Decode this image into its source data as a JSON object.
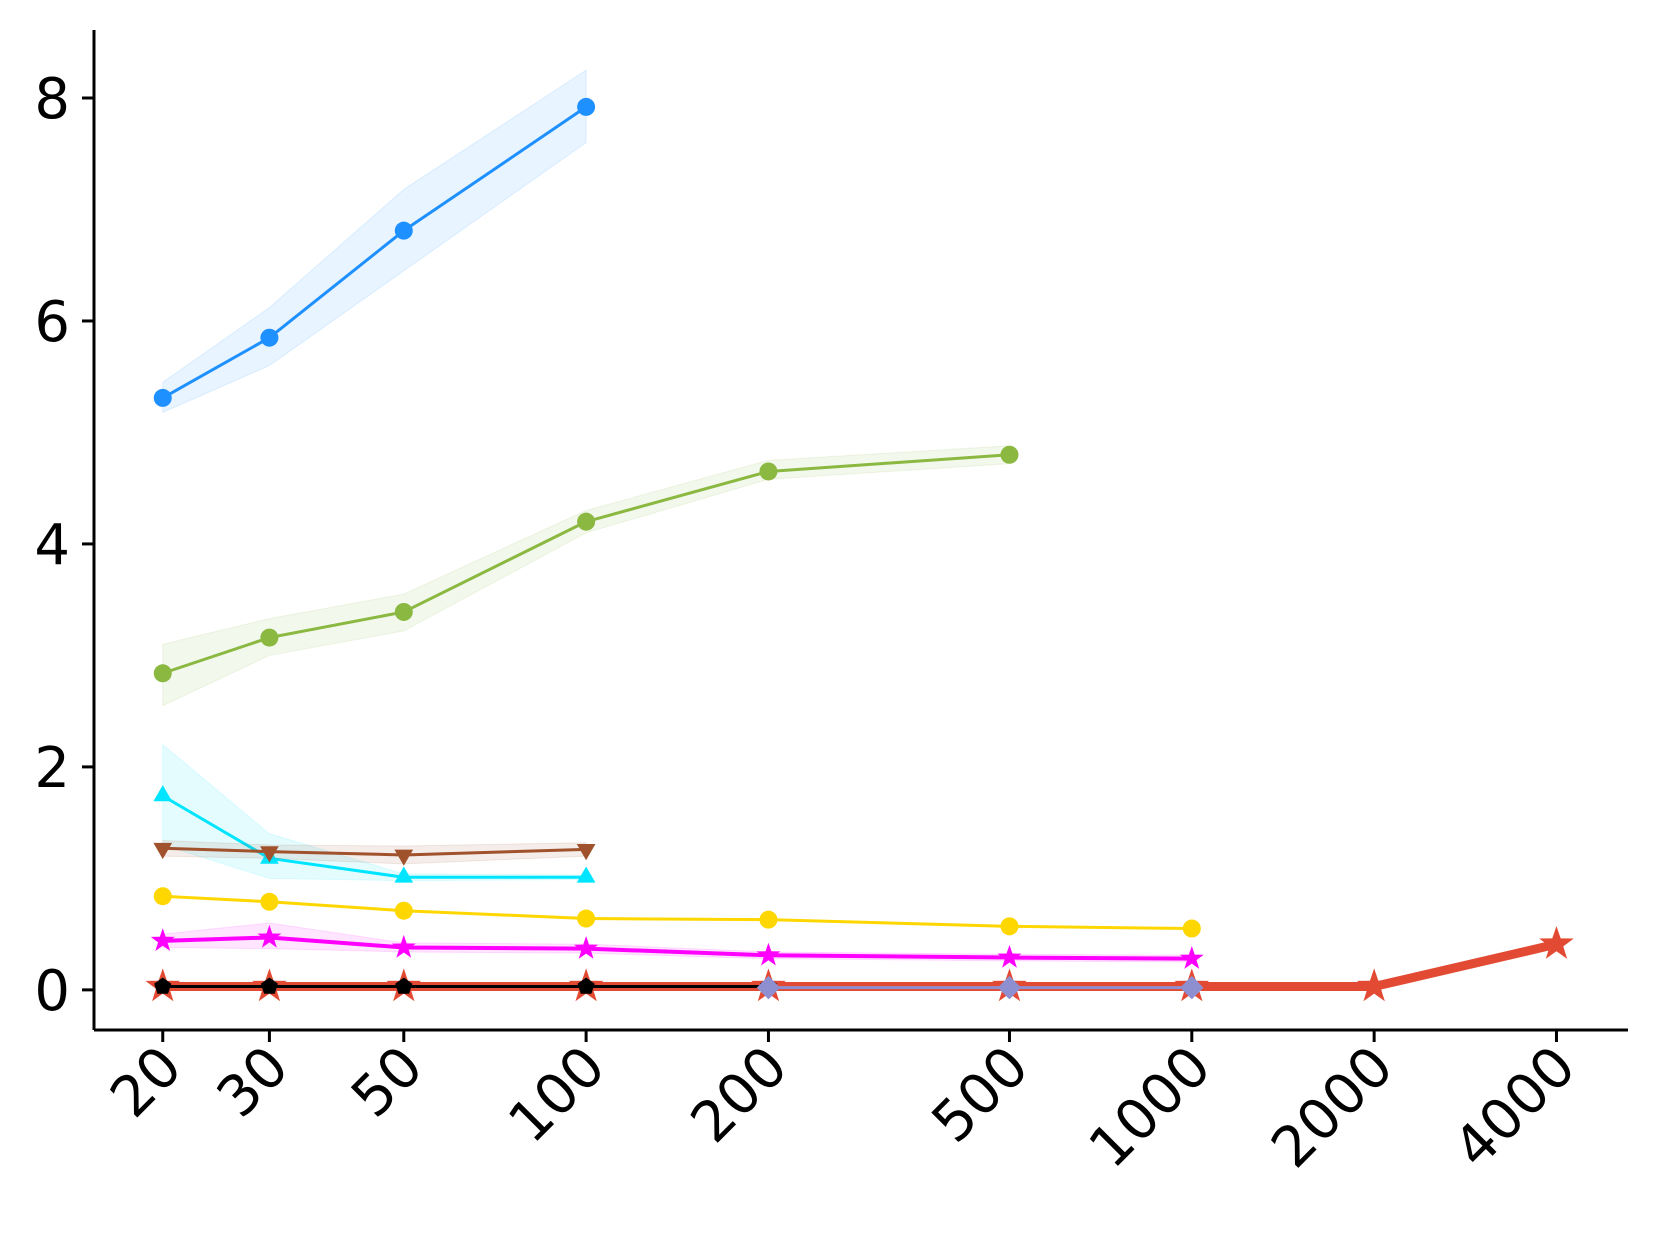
{
  "chart_data": {
    "type": "line",
    "xscale": "log",
    "x": [
      20,
      30,
      50,
      100,
      200,
      500,
      1000,
      2000,
      4000
    ],
    "xlim": [
      15.4,
      5250
    ],
    "xticks": [
      20,
      30,
      50,
      100,
      200,
      500,
      1000,
      2000,
      4000
    ],
    "ylim": [
      -0.36,
      8.61
    ],
    "yticks": [
      0,
      2,
      4,
      6,
      8
    ],
    "series": [
      {
        "color": "#1e90ff",
        "marker": "circle",
        "linewidth": 3,
        "values": [
          5.31,
          5.85,
          6.81,
          7.92,
          null,
          null,
          null,
          null,
          null
        ],
        "lower": [
          5.18,
          5.6,
          6.45,
          7.6,
          null,
          null,
          null,
          null,
          null
        ],
        "upper": [
          5.45,
          6.12,
          7.18,
          8.25,
          null,
          null,
          null,
          null,
          null
        ]
      },
      {
        "color": "#8ab840",
        "marker": "circle",
        "linewidth": 3,
        "values": [
          2.84,
          3.16,
          3.39,
          4.2,
          4.65,
          4.8,
          null,
          null,
          null
        ],
        "lower": [
          2.55,
          3.0,
          3.22,
          4.1,
          4.58,
          4.72,
          null,
          null,
          null
        ],
        "upper": [
          3.1,
          3.33,
          3.55,
          4.3,
          4.75,
          4.88,
          null,
          null,
          null
        ]
      },
      {
        "color": "#00e5ff",
        "marker": "triangle-up",
        "linewidth": 3,
        "values": [
          1.74,
          1.18,
          1.01,
          1.01,
          null,
          null,
          null,
          null,
          null
        ],
        "lower": [
          1.3,
          1.0,
          0.98,
          0.99,
          null,
          null,
          null,
          null,
          null
        ],
        "upper": [
          2.2,
          1.4,
          1.04,
          1.03,
          null,
          null,
          null,
          null,
          null
        ]
      },
      {
        "color": "#a0522d",
        "marker": "triangle-down",
        "linewidth": 3,
        "values": [
          1.27,
          1.24,
          1.21,
          1.26,
          null,
          null,
          null,
          null,
          null
        ],
        "lower": [
          1.2,
          1.18,
          1.13,
          1.2,
          null,
          null,
          null,
          null,
          null
        ],
        "upper": [
          1.34,
          1.3,
          1.29,
          1.32,
          null,
          null,
          null,
          null,
          null
        ]
      },
      {
        "color": "#ffd700",
        "marker": "circle",
        "linewidth": 3,
        "values": [
          0.84,
          0.79,
          0.71,
          0.64,
          0.63,
          0.57,
          0.55,
          null,
          null
        ]
      },
      {
        "color": "#ff00ff",
        "marker": "star",
        "linewidth": 4,
        "values": [
          0.44,
          0.47,
          0.38,
          0.37,
          0.31,
          0.29,
          0.28,
          null,
          null
        ],
        "lower": [
          0.38,
          0.37,
          0.34,
          0.33,
          0.28,
          0.26,
          0.25,
          null,
          null
        ],
        "upper": [
          0.5,
          0.6,
          0.42,
          0.41,
          0.34,
          0.32,
          0.31,
          null,
          null
        ]
      },
      {
        "color": "#e34a33",
        "marker": "star",
        "linewidth": 9,
        "values": [
          0.03,
          0.03,
          0.03,
          0.03,
          0.03,
          0.03,
          0.03,
          0.03,
          0.41
        ]
      },
      {
        "color": "#000000",
        "marker": "pentagon",
        "linewidth": 3,
        "values": [
          0.03,
          0.03,
          0.03,
          0.03,
          0.03,
          null,
          null,
          null,
          null
        ]
      },
      {
        "color": "#8e8fd0",
        "marker": "diamond",
        "linewidth": 3,
        "values": [
          null,
          null,
          null,
          null,
          0.02,
          0.02,
          0.02,
          null,
          null
        ]
      }
    ]
  }
}
